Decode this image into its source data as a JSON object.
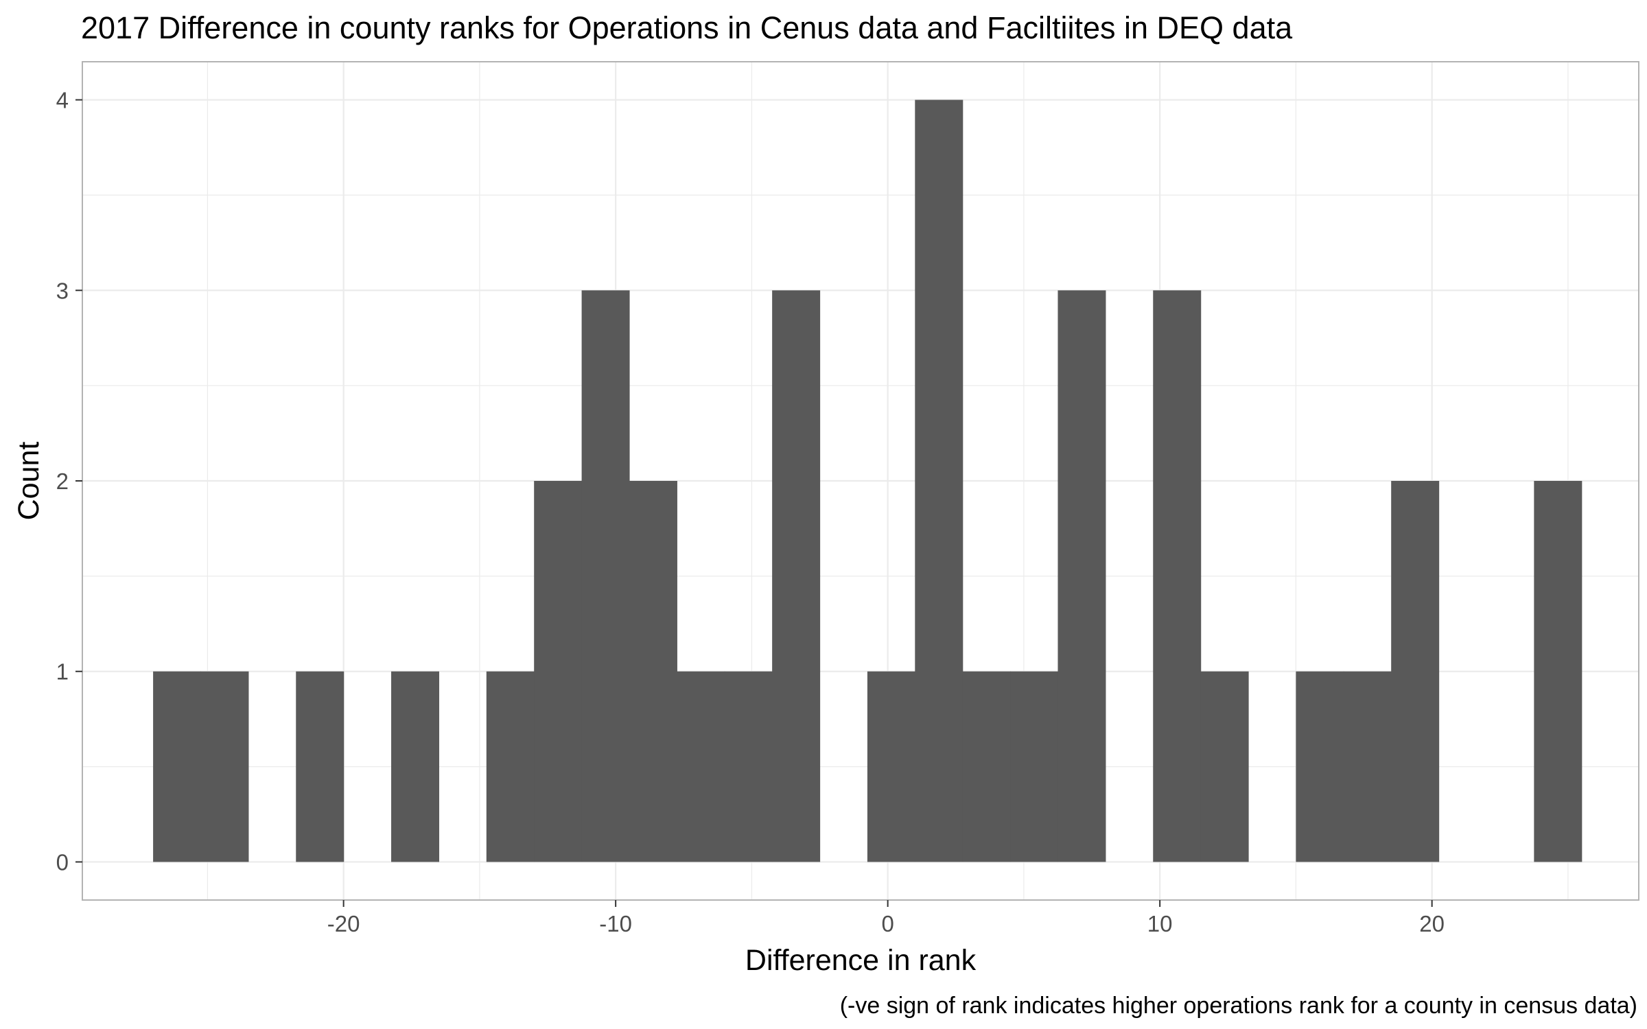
{
  "chart_data": {
    "type": "bar",
    "title": "2017 Difference in county ranks for Operations in Cenus data and Faciltiites in DEQ data",
    "xlabel": "Difference in rank",
    "ylabel": "Count",
    "caption": "(-ve sign of rank indicates higher operations rank for a county in census data)",
    "xlim": [
      -29.6,
      27.6
    ],
    "ylim": [
      -0.2,
      4.2
    ],
    "x_ticks": [
      -20,
      -10,
      0,
      10,
      20
    ],
    "x_tick_labels": [
      "-20",
      "-10",
      "0",
      "10",
      "20"
    ],
    "y_ticks": [
      0,
      1,
      2,
      3,
      4
    ],
    "y_tick_labels": [
      "0",
      "1",
      "2",
      "3",
      "4"
    ],
    "grid": true,
    "bin_width": 1.75,
    "bins": [
      {
        "start": -27.0,
        "end": -25.25,
        "count": 1
      },
      {
        "start": -25.25,
        "end": -23.5,
        "count": 1
      },
      {
        "start": -23.5,
        "end": -21.75,
        "count": 0
      },
      {
        "start": -21.75,
        "end": -20.0,
        "count": 1
      },
      {
        "start": -20.0,
        "end": -18.25,
        "count": 0
      },
      {
        "start": -18.25,
        "end": -16.5,
        "count": 1
      },
      {
        "start": -16.5,
        "end": -14.75,
        "count": 0
      },
      {
        "start": -14.75,
        "end": -13.0,
        "count": 1
      },
      {
        "start": -13.0,
        "end": -11.25,
        "count": 2
      },
      {
        "start": -11.25,
        "end": -9.5,
        "count": 3
      },
      {
        "start": -9.5,
        "end": -7.75,
        "count": 2
      },
      {
        "start": -7.75,
        "end": -6.0,
        "count": 1
      },
      {
        "start": -6.0,
        "end": -4.25,
        "count": 1
      },
      {
        "start": -4.25,
        "end": -2.5,
        "count": 3
      },
      {
        "start": -2.5,
        "end": -0.75,
        "count": 0
      },
      {
        "start": -0.75,
        "end": 1.0,
        "count": 1
      },
      {
        "start": 1.0,
        "end": 2.75,
        "count": 4
      },
      {
        "start": 2.75,
        "end": 4.5,
        "count": 1
      },
      {
        "start": 4.5,
        "end": 6.25,
        "count": 1
      },
      {
        "start": 6.25,
        "end": 8.0,
        "count": 3
      },
      {
        "start": 8.0,
        "end": 9.75,
        "count": 0
      },
      {
        "start": 9.75,
        "end": 11.5,
        "count": 3
      },
      {
        "start": 11.5,
        "end": 13.25,
        "count": 1
      },
      {
        "start": 13.25,
        "end": 15.0,
        "count": 0
      },
      {
        "start": 15.0,
        "end": 16.75,
        "count": 1
      },
      {
        "start": 16.75,
        "end": 18.5,
        "count": 1
      },
      {
        "start": 18.5,
        "end": 20.25,
        "count": 2
      },
      {
        "start": 20.25,
        "end": 22.0,
        "count": 0
      },
      {
        "start": 22.0,
        "end": 23.75,
        "count": 0
      },
      {
        "start": 23.75,
        "end": 25.5,
        "count": 2
      }
    ],
    "colors": {
      "bar": "#595959",
      "grid": "#ebebeb",
      "panel_border": "#b3b3b3",
      "tick_text": "#4d4d4d"
    }
  }
}
